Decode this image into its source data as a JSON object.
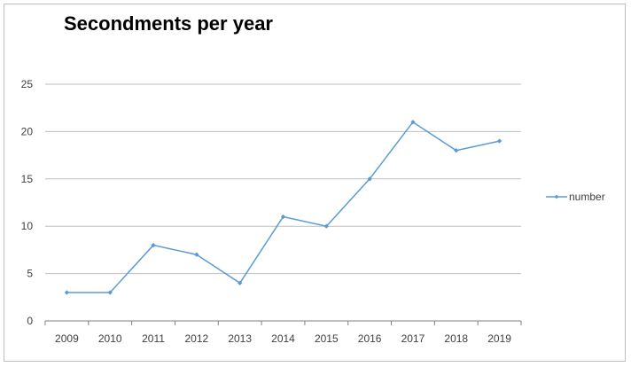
{
  "chart_data": {
    "type": "line",
    "title": "Secondments per year",
    "xlabel": "",
    "ylabel": "",
    "categories": [
      "2009",
      "2010",
      "2011",
      "2012",
      "2013",
      "2014",
      "2015",
      "2016",
      "2017",
      "2018",
      "2019"
    ],
    "series": [
      {
        "name": "number",
        "values": [
          3,
          3,
          8,
          7,
          4,
          11,
          10,
          15,
          21,
          18,
          19
        ],
        "color": "#5b9bd5"
      }
    ],
    "ylim": [
      0,
      25
    ],
    "yticks": [
      0,
      5,
      10,
      15,
      20,
      25
    ],
    "grid": true,
    "legend_position": "right",
    "gridline_color": "#bfbfbf",
    "axis_color": "#7f7f7f"
  }
}
